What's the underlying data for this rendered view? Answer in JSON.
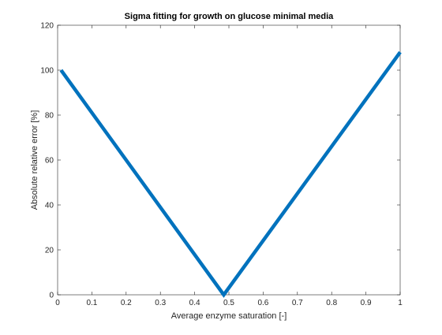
{
  "chart_data": {
    "type": "line",
    "title": "Sigma fitting for growth on glucose minimal media",
    "xlabel": "Average enzyme saturation [-]",
    "ylabel": "Absolute relative error [%]",
    "xlim": [
      0,
      1
    ],
    "ylim": [
      0,
      120
    ],
    "xticks": [
      0,
      0.1,
      0.2,
      0.3,
      0.4,
      0.5,
      0.6,
      0.7,
      0.8,
      0.9,
      1
    ],
    "xtick_labels": [
      "0",
      "0.1",
      "0.2",
      "0.3",
      "0.4",
      "0.5",
      "0.6",
      "0.7",
      "0.8",
      "0.9",
      "1"
    ],
    "yticks": [
      0,
      20,
      40,
      60,
      80,
      100,
      120
    ],
    "ytick_labels": [
      "0",
      "20",
      "40",
      "60",
      "80",
      "100",
      "120"
    ],
    "grid": false,
    "series": [
      {
        "color": "#0072BD",
        "x": [
          0.01,
          0.485,
          1.0
        ],
        "y": [
          100,
          0,
          108
        ]
      }
    ]
  }
}
